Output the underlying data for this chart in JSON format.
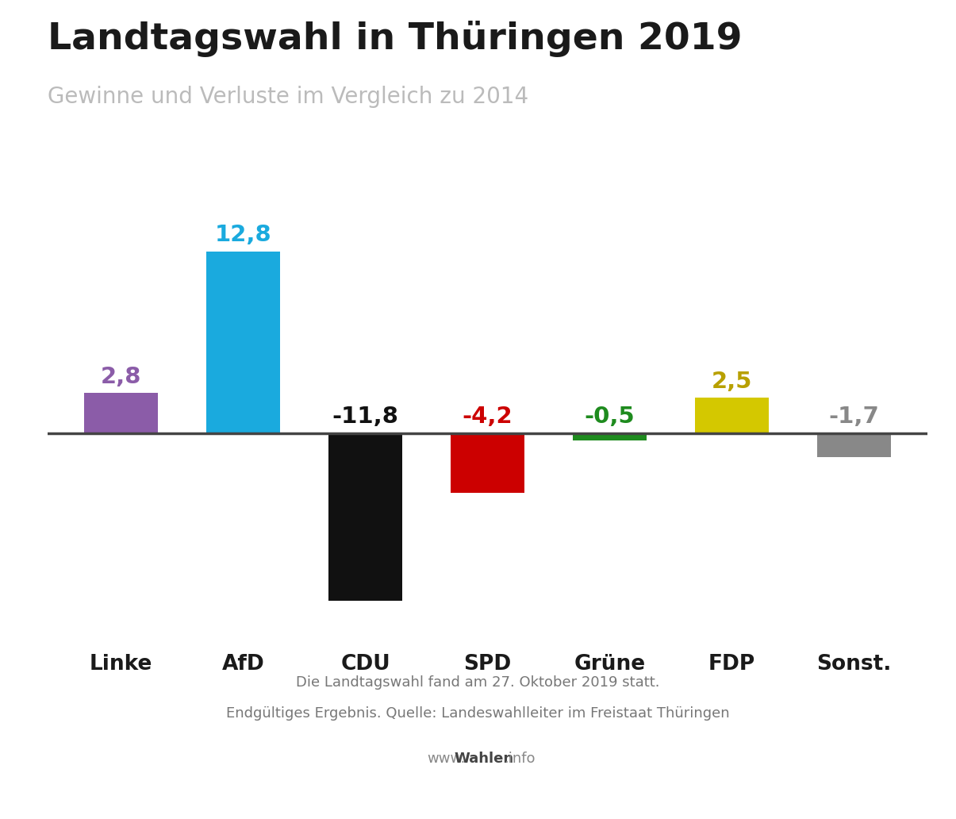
{
  "title": "Landtagswahl in Thüringen 2019",
  "subtitle": "Gewinne und Verluste im Vergleich zu 2014",
  "parties": [
    "Linke",
    "AfD",
    "CDU",
    "SPD",
    "Grüne",
    "FDP",
    "Sonst."
  ],
  "values": [
    2.8,
    12.8,
    -11.8,
    -4.2,
    -0.5,
    2.5,
    -1.7
  ],
  "bar_colors": [
    "#8B5CA8",
    "#1AAADE",
    "#111111",
    "#CC0000",
    "#1E8B1E",
    "#D4C800",
    "#888888"
  ],
  "label_colors": [
    "#8B5CA8",
    "#1AAADE",
    "#111111",
    "#CC0000",
    "#1E8B1E",
    "#B8A000",
    "#888888"
  ],
  "footnote1": "Die Landtagswahl fand am 27. Oktober 2019 statt.",
  "footnote2": "Endgültiges Ergebnis. Quelle: Landeswahlleiter im Freistaat Thüringen",
  "website_normal1": "www.",
  "website_bold": "Wahlen",
  "website_normal2": ".info",
  "ylim_min": -14.5,
  "ylim_max": 15.5,
  "bg_color": "#FFFFFF",
  "title_color": "#1a1a1a",
  "subtitle_color": "#BBBBBB",
  "footnote_color": "#777777",
  "website_color": "#888888",
  "website_bold_color": "#444444",
  "party_label_color": "#1a1a1a",
  "zeroline_color": "#444444"
}
